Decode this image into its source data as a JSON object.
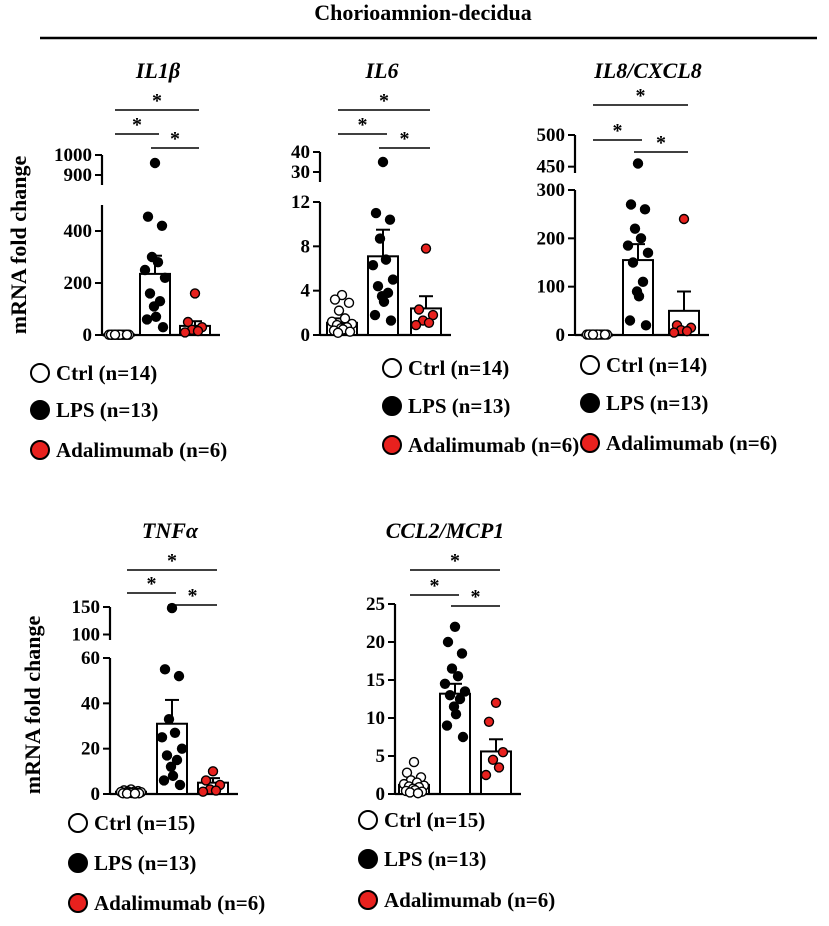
{
  "header": {
    "title": "Chorioamnion-decidua"
  },
  "y_axis_label": "mRNA fold change",
  "colors": {
    "ctrl": "#ffffff",
    "lps": "#000000",
    "adalimumab": "#e8211e",
    "axis": "#000000"
  },
  "chart_data": [
    {
      "type": "bar",
      "title": "IL1β",
      "ylabel": "mRNA fold change",
      "categories": [
        "Ctrl",
        "LPS",
        "Adalimumab"
      ],
      "values": [
        2,
        235,
        35
      ],
      "errors": [
        1,
        70,
        18
      ],
      "ylim": [
        0,
        1000
      ],
      "segments": [
        {
          "range": [
            0,
            500
          ],
          "ticks": [
            0,
            200,
            400
          ]
        },
        {
          "range": [
            850,
            1000
          ],
          "ticks": [
            900,
            1000
          ]
        }
      ],
      "points": [
        [
          1,
          1,
          1,
          1,
          1,
          1,
          1,
          1,
          1,
          1,
          1,
          1,
          1,
          1
        ],
        [
          960,
          455,
          420,
          300,
          280,
          250,
          220,
          160,
          130,
          110,
          70,
          60,
          30
        ],
        [
          160,
          50,
          30,
          20,
          15,
          10
        ]
      ],
      "significance": [
        {
          "pair": [
            0,
            1
          ],
          "label": "*"
        },
        {
          "pair": [
            1,
            2
          ],
          "label": "*"
        },
        {
          "pair": [
            0,
            2
          ],
          "label": "*"
        }
      ],
      "legend": [
        "Ctrl (n=14)",
        "LPS (n=13)",
        "Adalimumab (n=6)"
      ]
    },
    {
      "type": "bar",
      "title": "IL6",
      "ylabel": "mRNA fold change",
      "categories": [
        "Ctrl",
        "LPS",
        "Adalimumab"
      ],
      "values": [
        1.1,
        7.1,
        2.4
      ],
      "errors": [
        0.4,
        2.4,
        1.1
      ],
      "ylim": [
        0,
        40
      ],
      "segments": [
        {
          "range": [
            0,
            12
          ],
          "ticks": [
            0,
            4,
            8,
            12
          ]
        },
        {
          "range": [
            25,
            40
          ],
          "ticks": [
            30,
            40
          ]
        }
      ],
      "points": [
        [
          3.6,
          3.2,
          2.9,
          2.2,
          1.5,
          1.2,
          1.0,
          0.9,
          0.7,
          0.6,
          0.5,
          0.4,
          0.3,
          0.2
        ],
        [
          35,
          11.0,
          10.4,
          8.7,
          6.8,
          6.3,
          5.0,
          4.4,
          3.8,
          3.5,
          3.0,
          1.8,
          1.3
        ],
        [
          7.8,
          2.3,
          1.8,
          1.3,
          1.1,
          0.9
        ]
      ],
      "significance": [
        {
          "pair": [
            0,
            1
          ],
          "label": "*"
        },
        {
          "pair": [
            1,
            2
          ],
          "label": "*"
        },
        {
          "pair": [
            0,
            2
          ],
          "label": "*"
        }
      ],
      "legend": [
        "Ctrl (n=14)",
        "LPS (n=13)",
        "Adalimumab (n=6)"
      ]
    },
    {
      "type": "bar",
      "title": "IL8/CXCL8",
      "ylabel": "mRNA fold change",
      "categories": [
        "Ctrl",
        "LPS",
        "Adalimumab"
      ],
      "values": [
        1,
        155,
        50
      ],
      "errors": [
        0.5,
        33,
        40
      ],
      "ylim": [
        0,
        500
      ],
      "segments": [
        {
          "range": [
            0,
            300
          ],
          "ticks": [
            0,
            100,
            200,
            300
          ]
        },
        {
          "range": [
            440,
            500
          ],
          "ticks": [
            450,
            500
          ]
        }
      ],
      "points": [
        [
          1,
          1,
          1,
          1,
          1,
          1,
          1,
          1,
          1,
          1,
          1,
          1,
          1,
          1
        ],
        [
          455,
          270,
          260,
          220,
          200,
          185,
          170,
          150,
          110,
          90,
          80,
          30,
          20
        ],
        [
          240,
          20,
          15,
          10,
          8,
          5
        ]
      ],
      "significance": [
        {
          "pair": [
            0,
            1
          ],
          "label": "*"
        },
        {
          "pair": [
            1,
            2
          ],
          "label": "*"
        },
        {
          "pair": [
            0,
            2
          ],
          "label": "*"
        }
      ],
      "legend": [
        "Ctrl (n=14)",
        "LPS (n=13)",
        "Adalimumab (n=6)"
      ]
    },
    {
      "type": "bar",
      "title": "TNFα",
      "ylabel": "mRNA fold change",
      "categories": [
        "Ctrl",
        "LPS",
        "Adalimumab"
      ],
      "values": [
        1,
        31,
        5
      ],
      "errors": [
        0.3,
        10.5,
        2
      ],
      "ylim": [
        0,
        150
      ],
      "segments": [
        {
          "range": [
            0,
            60
          ],
          "ticks": [
            0,
            20,
            40,
            60
          ]
        },
        {
          "range": [
            90,
            150
          ],
          "ticks": [
            100,
            150
          ]
        }
      ],
      "points": [
        [
          2.0,
          1.6,
          1.3,
          1.1,
          1.0,
          0.9,
          0.8,
          0.7,
          0.6,
          0.5,
          0.4,
          0.3,
          0.3,
          0.2,
          0.2
        ],
        [
          148,
          55,
          52,
          33,
          27,
          25,
          20,
          17,
          15,
          12,
          8,
          6,
          4
        ],
        [
          10,
          6,
          4,
          2,
          1.5,
          1
        ]
      ],
      "significance": [
        {
          "pair": [
            0,
            1
          ],
          "label": "*"
        },
        {
          "pair": [
            1,
            2
          ],
          "label": "*"
        },
        {
          "pair": [
            0,
            2
          ],
          "label": "*"
        }
      ],
      "legend": [
        "Ctrl (n=15)",
        "LPS (n=13)",
        "Adalimumab (n=6)"
      ]
    },
    {
      "type": "bar",
      "title": "CCL2/MCP1",
      "ylabel": "mRNA fold change",
      "categories": [
        "Ctrl",
        "LPS",
        "Adalimumab"
      ],
      "values": [
        1.2,
        13.2,
        5.6
      ],
      "errors": [
        0.4,
        1.3,
        1.6
      ],
      "ylim": [
        0,
        25
      ],
      "segments": [
        {
          "range": [
            0,
            25
          ],
          "ticks": [
            0,
            5,
            10,
            15,
            20,
            25
          ]
        }
      ],
      "points": [
        [
          4.2,
          2.8,
          2.2,
          1.8,
          1.5,
          1.3,
          1.1,
          1.0,
          0.9,
          0.7,
          0.5,
          0.4,
          0.3,
          0.2,
          0.1
        ],
        [
          22,
          20,
          18.5,
          16.5,
          15.5,
          14.5,
          13.5,
          13,
          12.5,
          11.5,
          10.5,
          9,
          7.5
        ],
        [
          12,
          9.5,
          5.5,
          4.5,
          3.5,
          2.5
        ]
      ],
      "significance": [
        {
          "pair": [
            0,
            1
          ],
          "label": "*"
        },
        {
          "pair": [
            1,
            2
          ],
          "label": "*"
        },
        {
          "pair": [
            0,
            2
          ],
          "label": "*"
        }
      ],
      "legend": [
        "Ctrl (n=15)",
        "LPS (n=13)",
        "Adalimumab (n=6)"
      ]
    }
  ]
}
